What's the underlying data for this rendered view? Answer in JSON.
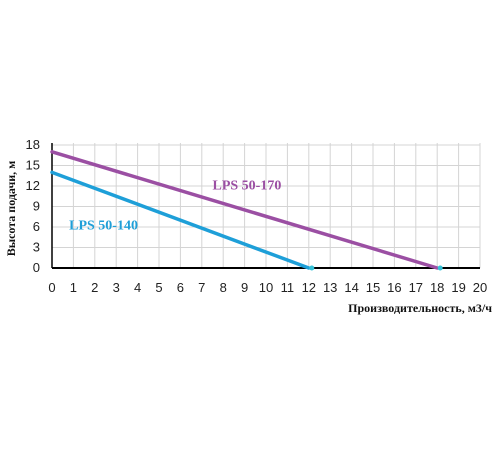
{
  "chart_data": {
    "type": "line",
    "title": "",
    "xlabel": "Производительность, м3/ч",
    "ylabel": "Высота подачи, м",
    "xlim": [
      0,
      20
    ],
    "ylim": [
      0,
      18
    ],
    "xticks": [
      "0",
      "1",
      "2",
      "3",
      "4",
      "5",
      "6",
      "7",
      "8",
      "9",
      "10",
      "11",
      "12",
      "13",
      "14",
      "15",
      "16",
      "17",
      "18",
      "19",
      "20"
    ],
    "yticks": [
      "0",
      "3",
      "6",
      "9",
      "12",
      "15",
      "18"
    ],
    "grid": true,
    "series": [
      {
        "name": "LPS 50-170",
        "color": "#9b4fa3",
        "x": [
          0,
          18
        ],
        "y": [
          17,
          0
        ]
      },
      {
        "name": "LPS 50-140",
        "color": "#1e9fd8",
        "x": [
          0,
          12
        ],
        "y": [
          14,
          0
        ]
      }
    ]
  }
}
